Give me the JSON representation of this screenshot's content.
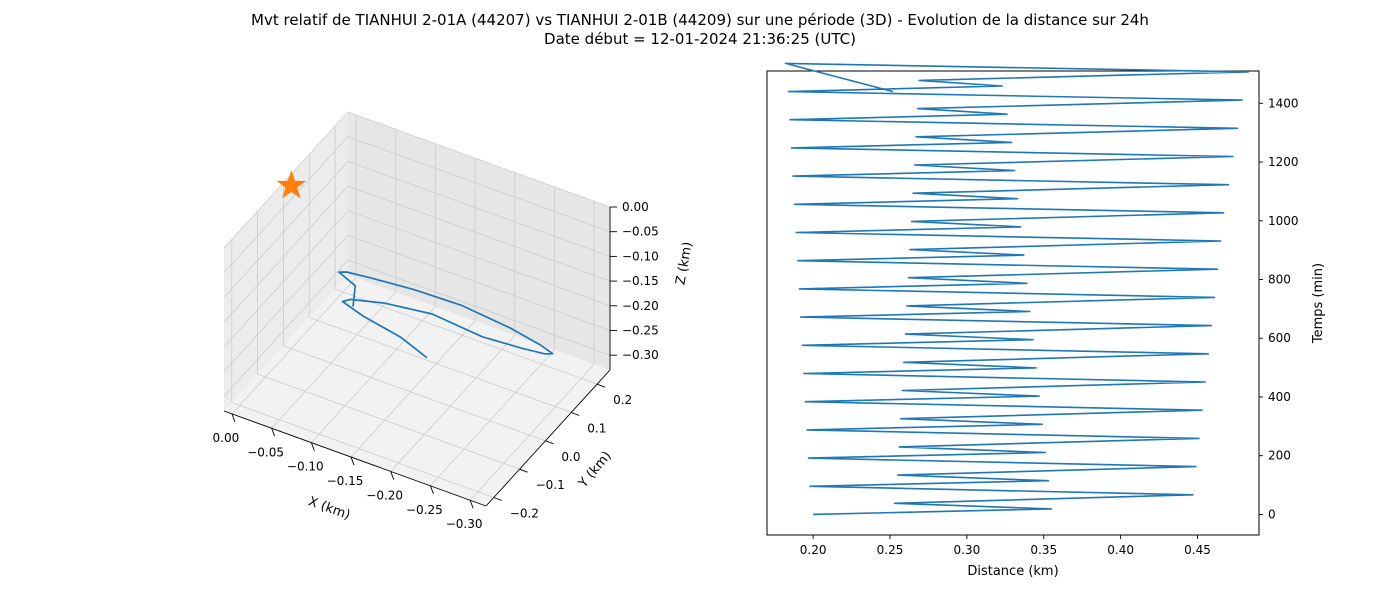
{
  "title_line1": "Mvt relatif de TIANHUI 2-01A (44207) vs TIANHUI 2-01B (44209) sur une période (3D) - Evolution de la distance sur 24h",
  "title_line2": "Date début = 12-01-2024 21:36:25 (UTC)",
  "colors": {
    "line": "#1f77b4",
    "star": "#ff7f0e",
    "pane": "#f2f2f2",
    "grid": "#cccccc"
  },
  "chart_data": [
    {
      "type": "line3d",
      "xlabel": "X (km)",
      "ylabel": "Y (km)",
      "zlabel": "Z (km)",
      "x_ticks": [
        "−0.30",
        "−0.25",
        "−0.20",
        "−0.15",
        "−0.10",
        "−0.05",
        "0.00"
      ],
      "y_ticks": [
        "−0.2",
        "−0.1",
        "0.0",
        "0.1",
        "0.2"
      ],
      "z_ticks": [
        "0.00",
        "−0.05",
        "−0.10",
        "−0.15",
        "−0.20",
        "−0.25",
        "−0.30"
      ],
      "xlim": [
        -0.32,
        0.01
      ],
      "ylim": [
        -0.23,
        0.25
      ],
      "zlim": [
        -0.33,
        0.0
      ],
      "marker": {
        "shape": "star",
        "x": 0.0,
        "y": 0.0,
        "z": 0.0
      },
      "series": [
        {
          "points": [
            [
              -0.12,
              -0.13,
              -0.1
            ],
            [
              -0.1,
              -0.06,
              -0.11
            ],
            [
              -0.06,
              0.0,
              -0.14
            ],
            [
              -0.05,
              0.06,
              -0.18
            ],
            [
              -0.06,
              0.12,
              -0.22
            ],
            [
              -0.1,
              0.17,
              -0.25
            ],
            [
              -0.15,
              0.2,
              -0.27
            ],
            [
              -0.21,
              0.2,
              -0.28
            ],
            [
              -0.26,
              0.17,
              -0.27
            ],
            [
              -0.29,
              0.12,
              -0.24
            ],
            [
              -0.3,
              0.06,
              -0.2
            ],
            [
              -0.29,
              0.0,
              -0.16
            ],
            [
              -0.26,
              -0.06,
              -0.12
            ],
            [
              -0.21,
              -0.1,
              -0.08
            ],
            [
              -0.16,
              -0.13,
              -0.07
            ],
            [
              -0.12,
              -0.14,
              -0.08
            ],
            [
              -0.11,
              -0.14,
              -0.09
            ],
            [
              -0.13,
              -0.12,
              -0.12
            ],
            [
              -0.17,
              -0.1,
              -0.15
            ],
            [
              -0.2,
              -0.09,
              -0.18
            ]
          ]
        }
      ]
    },
    {
      "type": "line",
      "xlabel": "Distance (km)",
      "ylabel": "Temps (min)",
      "xlim": [
        0.17,
        0.49
      ],
      "ylim": [
        -70,
        1510
      ],
      "x_ticks": [
        0.2,
        0.25,
        0.3,
        0.35,
        0.4,
        0.45
      ],
      "y_ticks": [
        0,
        200,
        400,
        600,
        800,
        1000,
        1200,
        1400
      ],
      "series": [
        {
          "x": [
            0.2,
            0.355,
            0.253,
            0.447,
            0.198,
            0.353,
            0.255,
            0.449,
            0.197,
            0.351,
            0.256,
            0.451,
            0.196,
            0.349,
            0.257,
            0.453,
            0.195,
            0.347,
            0.258,
            0.455,
            0.194,
            0.345,
            0.259,
            0.457,
            0.193,
            0.343,
            0.26,
            0.459,
            0.192,
            0.341,
            0.261,
            0.461,
            0.191,
            0.339,
            0.262,
            0.463,
            0.19,
            0.337,
            0.263,
            0.465,
            0.189,
            0.335,
            0.264,
            0.467,
            0.188,
            0.333,
            0.265,
            0.47,
            0.187,
            0.331,
            0.266,
            0.473,
            0.186,
            0.329,
            0.267,
            0.476,
            0.185,
            0.326,
            0.268,
            0.479,
            0.184,
            0.323,
            0.269,
            0.483,
            0.182,
            0.252
          ],
          "y": [
            0,
            19,
            38,
            67,
            96,
            115,
            134,
            163,
            192,
            211,
            230,
            259,
            288,
            307,
            326,
            355,
            384,
            403,
            422,
            451,
            480,
            499,
            518,
            547,
            576,
            595,
            614,
            643,
            672,
            691,
            710,
            739,
            768,
            787,
            806,
            835,
            864,
            883,
            902,
            931,
            960,
            979,
            998,
            1027,
            1056,
            1075,
            1094,
            1123,
            1152,
            1171,
            1190,
            1219,
            1248,
            1267,
            1286,
            1315,
            1344,
            1363,
            1382,
            1411,
            1440,
            1459,
            1478,
            1507,
            1536,
            1440
          ]
        }
      ]
    }
  ]
}
